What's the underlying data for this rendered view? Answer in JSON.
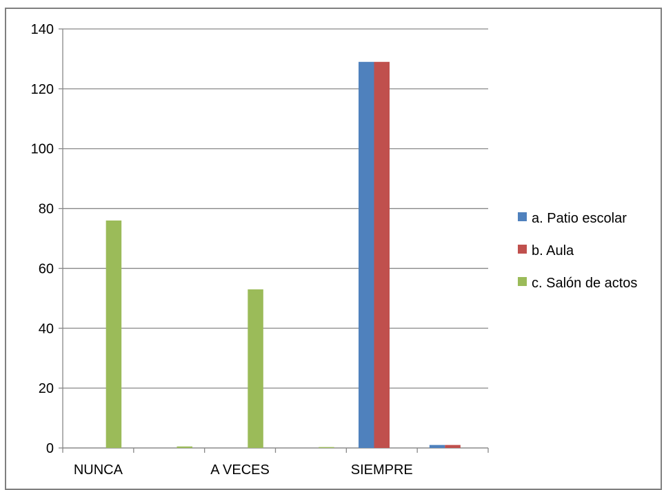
{
  "chart_data": {
    "type": "bar",
    "title": "",
    "xlabel": "",
    "ylabel": "",
    "categories": [
      "NUNCA",
      "",
      "A VECES",
      "",
      "SIEMPRE",
      ""
    ],
    "series": [
      {
        "name": "a. Patio escolar",
        "color": "#4f81bd",
        "values": [
          0,
          0,
          0,
          0,
          129,
          1
        ]
      },
      {
        "name": "b. Aula",
        "color": "#c0504d",
        "values": [
          0,
          0,
          0,
          0,
          129,
          1
        ]
      },
      {
        "name": "c. Salón de actos",
        "color": "#9bbb59",
        "values": [
          76,
          0.5,
          53,
          0.3,
          0,
          0
        ]
      }
    ],
    "ylim": [
      0,
      140
    ],
    "yticks": [
      0,
      20,
      40,
      60,
      80,
      100,
      120,
      140
    ],
    "grid": true,
    "legend": "right"
  }
}
